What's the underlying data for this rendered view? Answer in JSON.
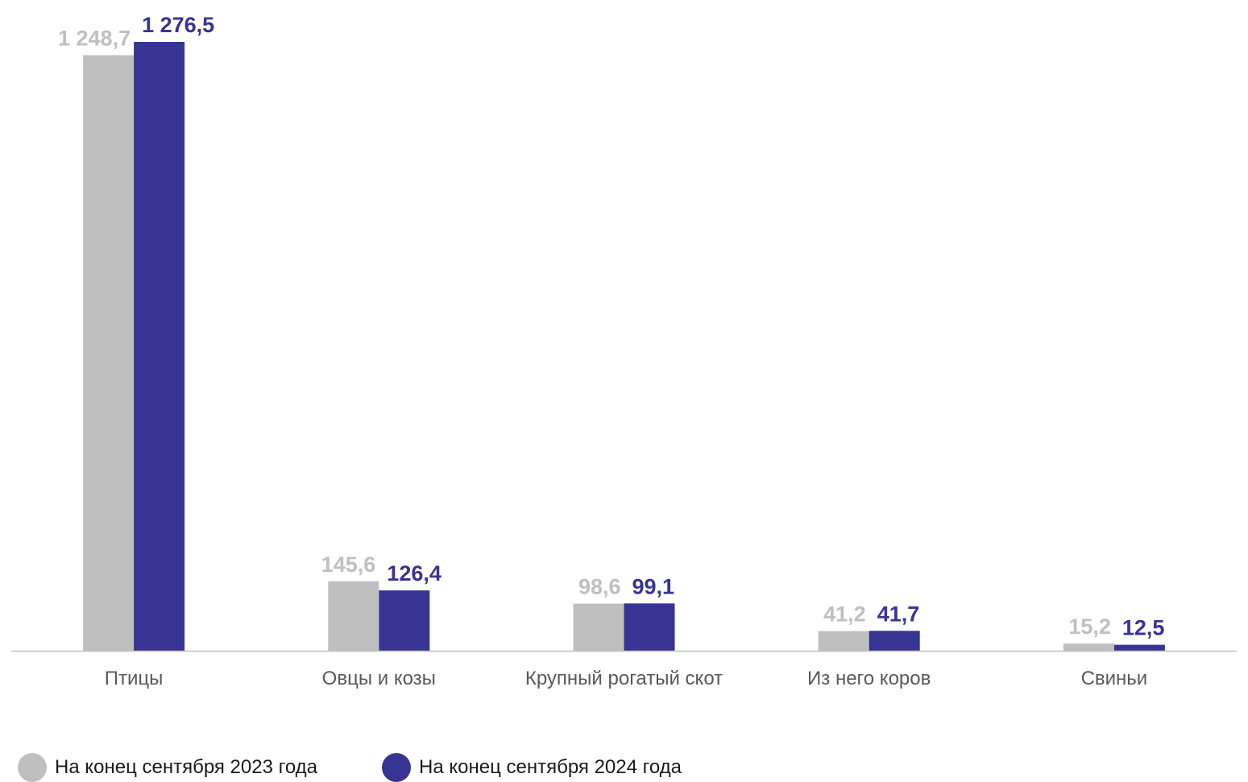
{
  "colors": {
    "series_2023": "#bfbfbf",
    "series_2024": "#383494",
    "axis": "#bfbfbf",
    "category_label": "#595959"
  },
  "legend": {
    "items": [
      {
        "label": "На конец сентября 2023 года",
        "color": "#bfbfbf"
      },
      {
        "label": "На конец сентября 2024 года",
        "color": "#383494"
      }
    ]
  },
  "chart_data": {
    "type": "bar",
    "categories": [
      "Птицы",
      "Овцы и козы",
      "Крупный рогатый скот",
      "Из него коров",
      "Свиньи"
    ],
    "series": [
      {
        "name": "На конец сентября 2023 года",
        "values": [
          1248.7,
          145.6,
          98.6,
          41.2,
          15.2
        ],
        "labels": [
          "1 248,7",
          "145,6",
          "98,6",
          "41,2",
          "15,2"
        ]
      },
      {
        "name": "На конец сентября 2024 года",
        "values": [
          1276.5,
          126.4,
          99.1,
          41.7,
          12.5
        ],
        "labels": [
          "1 276,5",
          "126,4",
          "99,1",
          "41,7",
          "12,5"
        ]
      }
    ],
    "ylim": [
      0,
      1276.5
    ],
    "grid": false,
    "legend_position": "bottom-left",
    "data_labels": true
  }
}
